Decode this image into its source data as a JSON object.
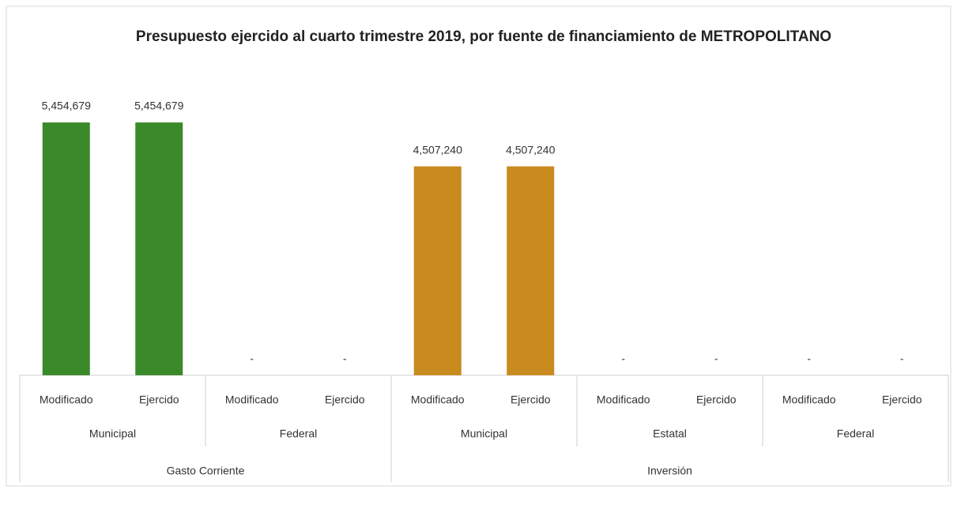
{
  "chart_data": {
    "type": "bar",
    "title": "Presupuesto ejercido al cuarto trimestre 2019, por fuente de financiamiento de METROPOLITANO",
    "groups": [
      {
        "name": "Gasto Corriente",
        "subgroups": [
          {
            "name": "Municipal",
            "categories": [
              "Modificado",
              "Ejercido"
            ],
            "values": [
              5454679,
              5454679
            ],
            "value_labels": [
              "5,454,679",
              "5,454,679"
            ],
            "color": "#3a8a2a"
          },
          {
            "name": "Federal",
            "categories": [
              "Modificado",
              "Ejercido"
            ],
            "values": [
              0,
              0
            ],
            "value_labels": [
              "-",
              "-"
            ]
          }
        ]
      },
      {
        "name": "Inversión",
        "subgroups": [
          {
            "name": "Municipal",
            "categories": [
              "Modificado",
              "Ejercido"
            ],
            "values": [
              4507240,
              4507240
            ],
            "value_labels": [
              "4,507,240",
              "4,507,240"
            ],
            "color": "#c98a1e"
          },
          {
            "name": "Estatal",
            "categories": [
              "Modificado",
              "Ejercido"
            ],
            "values": [
              0,
              0
            ],
            "value_labels": [
              "-",
              "-"
            ]
          },
          {
            "name": "Federal",
            "categories": [
              "Modificado",
              "Ejercido"
            ],
            "values": [
              0,
              0
            ],
            "value_labels": [
              "-",
              "-"
            ]
          }
        ]
      }
    ]
  }
}
